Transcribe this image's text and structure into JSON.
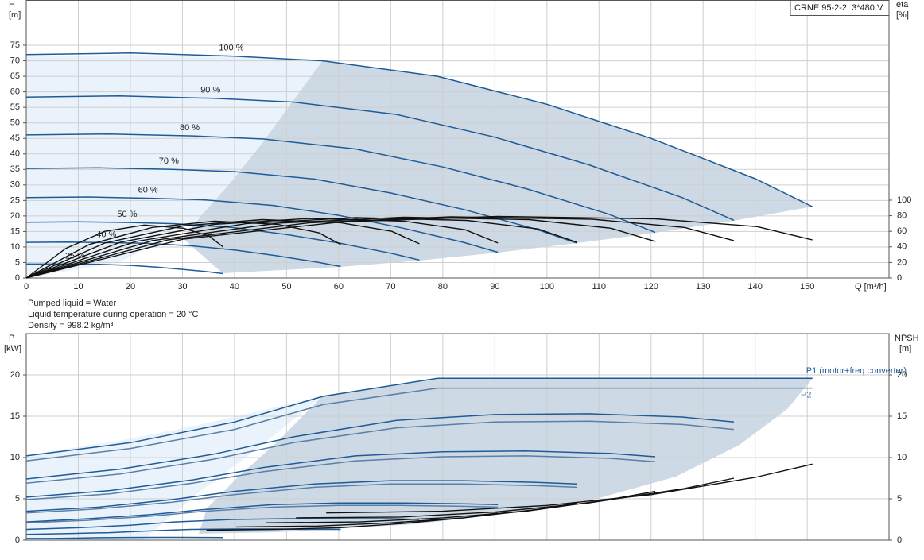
{
  "chart_data": [
    {
      "type": "line",
      "title": "CRNE 95-2-2, 3*480 V",
      "ylabel_lines": [
        "H",
        "[m]"
      ],
      "y2label_lines": [
        "eta",
        "[%]"
      ],
      "xlabel": "Q [m³/h]",
      "notes": [
        "Pumped liquid = Water",
        "Liquid temperature during operation = 20 °C",
        "Density = 998.2 kg/m³"
      ],
      "xlim": [
        0,
        165.7
      ],
      "ylim": [
        0,
        89.6
      ],
      "y2lim": [
        0,
        357
      ],
      "grid": true,
      "xticks": [
        0,
        10,
        20,
        30,
        40,
        50,
        60,
        70,
        80,
        90,
        100,
        110,
        120,
        130,
        140,
        150
      ],
      "yticks": [
        0,
        5,
        10,
        15,
        20,
        25,
        30,
        35,
        40,
        45,
        50,
        55,
        60,
        65,
        70,
        75
      ],
      "y2ticks": [
        0,
        20,
        40,
        60,
        80,
        100
      ],
      "series": [
        {
          "name": "100 %",
          "color": "#1f5b96",
          "x": [
            0,
            20,
            40,
            57,
            79,
            100,
            120,
            140,
            151
          ],
          "values": [
            72,
            72.5,
            71.5,
            70,
            65,
            56,
            45,
            32,
            23
          ]
        },
        {
          "name": "90 %",
          "color": "#1f5b96",
          "x": [
            0,
            18,
            36,
            51.3,
            71.1,
            90,
            108,
            126,
            135.9
          ],
          "values": [
            58.3,
            58.7,
            57.9,
            56.7,
            52.7,
            45.4,
            36.5,
            25.9,
            18.6
          ]
        },
        {
          "name": "80 %",
          "color": "#1f5b96",
          "x": [
            0,
            16,
            32,
            45.6,
            63.2,
            80,
            96,
            112,
            120.8
          ],
          "values": [
            46.1,
            46.4,
            45.8,
            44.8,
            41.6,
            35.8,
            28.8,
            20.5,
            14.7
          ]
        },
        {
          "name": "70 %",
          "color": "#1f5b96",
          "x": [
            0,
            14,
            28,
            39.9,
            55.3,
            70,
            84,
            98,
            105.7
          ],
          "values": [
            35.3,
            35.5,
            35.0,
            34.3,
            31.9,
            27.4,
            22.1,
            15.7,
            11.3
          ]
        },
        {
          "name": "60 %",
          "color": "#1f5b96",
          "x": [
            0,
            12,
            24,
            34.2,
            47.4,
            60,
            72,
            84,
            90.6
          ],
          "values": [
            25.9,
            26.1,
            25.7,
            25.2,
            23.4,
            20.2,
            16.2,
            11.5,
            8.3
          ]
        },
        {
          "name": "50 %",
          "color": "#1f5b96",
          "x": [
            0,
            10,
            20,
            28.5,
            39.5,
            50,
            60,
            70,
            75.5
          ],
          "values": [
            18,
            18.1,
            17.9,
            17.5,
            16.3,
            14,
            11.3,
            8,
            5.8
          ]
        },
        {
          "name": "40 %",
          "color": "#1f5b96",
          "x": [
            0,
            8,
            16,
            22.8,
            31.6,
            40,
            48,
            56,
            60.4
          ],
          "values": [
            11.5,
            11.6,
            11.4,
            11.2,
            10.4,
            9.0,
            7.2,
            5.1,
            3.7
          ]
        },
        {
          "name": "25 %",
          "color": "#1f5b96",
          "x": [
            0,
            5,
            10,
            14.3,
            19.8,
            25,
            30,
            35,
            37.8
          ],
          "values": [
            4.5,
            4.5,
            4.5,
            4.4,
            4.1,
            3.5,
            2.8,
            2.0,
            1.4
          ]
        },
        {
          "axis": "y2",
          "color": "#111111",
          "x": [
            0,
            30.2,
            60.4,
            90.6,
            120.8,
            140.4,
            151
          ],
          "values": [
            0,
            50,
            72,
            79,
            76,
            66,
            49
          ]
        },
        {
          "axis": "y2",
          "color": "#111111",
          "x": [
            0,
            27.2,
            54.4,
            81.5,
            108.7,
            126.4,
            135.9
          ],
          "values": [
            0,
            49,
            71,
            78.5,
            75.5,
            65,
            48
          ]
        },
        {
          "axis": "y2",
          "color": "#111111",
          "x": [
            0,
            24.2,
            48.3,
            72.5,
            96.6,
            112.3,
            120.8
          ],
          "values": [
            0,
            48,
            70.5,
            78,
            75,
            64,
            47
          ]
        },
        {
          "axis": "y2",
          "color": "#111111",
          "x": [
            0,
            21.1,
            42.3,
            63.4,
            84.6,
            98.3,
            105.7
          ],
          "values": [
            0,
            47,
            70,
            77.5,
            74,
            63,
            46
          ]
        },
        {
          "axis": "y2",
          "color": "#111111",
          "x": [
            0,
            18.1,
            36.2,
            54.4,
            72.5,
            84.3,
            90.6
          ],
          "values": [
            0,
            46,
            69,
            76.5,
            73,
            62,
            45
          ]
        },
        {
          "axis": "y2",
          "color": "#111111",
          "x": [
            0,
            15.1,
            30.2,
            45.3,
            60.4,
            70.2,
            75.5
          ],
          "values": [
            0,
            45,
            67,
            75,
            71,
            60,
            44
          ]
        },
        {
          "axis": "y2",
          "color": "#111111",
          "x": [
            0,
            12.1,
            24.2,
            36.2,
            48.3,
            56.2,
            60.4
          ],
          "values": [
            0,
            43,
            65,
            73,
            69,
            58,
            43
          ]
        },
        {
          "axis": "y2",
          "color": "#111111",
          "x": [
            0,
            7.6,
            15.1,
            22.7,
            30.2,
            35.1,
            37.8
          ],
          "values": [
            0,
            38,
            60,
            68,
            64,
            54,
            40
          ]
        }
      ]
    },
    {
      "type": "line",
      "ylabel_lines": [
        "P",
        "[kW]"
      ],
      "y2label_lines": [
        "NPSH",
        "[m]"
      ],
      "xlim": [
        0,
        165.7
      ],
      "ylim": [
        0,
        25
      ],
      "y2lim": [
        0,
        25
      ],
      "grid": true,
      "xticks": [
        0,
        10,
        20,
        30,
        40,
        50,
        60,
        70,
        80,
        90,
        100,
        110,
        120,
        130,
        140,
        150
      ],
      "yticks": [
        0,
        5,
        10,
        15,
        20
      ],
      "y2ticks": [
        0,
        5,
        10,
        15,
        20
      ],
      "series": [
        {
          "name": "P1 (motor+freq.converter)",
          "color": "#1f5b96",
          "x": [
            0,
            20,
            40,
            57,
            79,
            100,
            120,
            140,
            151
          ],
          "values": [
            10.2,
            11.8,
            14.3,
            17.4,
            19.6,
            19.6,
            19.6,
            19.6,
            19.6
          ]
        },
        {
          "color": "#1f5b96",
          "x": [
            0,
            18,
            36,
            51.3,
            71.1,
            90,
            108,
            126,
            135.9
          ],
          "values": [
            7.4,
            8.6,
            10.4,
            12.5,
            14.5,
            15.2,
            15.3,
            14.9,
            14.3
          ]
        },
        {
          "color": "#1f5b96",
          "x": [
            0,
            16,
            32,
            45.6,
            63.2,
            80,
            96,
            112,
            120.8
          ],
          "values": [
            5.2,
            6.0,
            7.3,
            8.8,
            10.2,
            10.7,
            10.8,
            10.5,
            10.1
          ]
        },
        {
          "color": "#1f5b96",
          "x": [
            0,
            14,
            28,
            39.9,
            55.3,
            70,
            84,
            98,
            105.7
          ],
          "values": [
            3.5,
            4.0,
            4.9,
            5.9,
            6.8,
            7.2,
            7.2,
            7.0,
            6.8
          ]
        },
        {
          "color": "#1f5b96",
          "x": [
            0,
            12,
            24,
            34.2,
            47.4,
            60,
            72,
            84,
            90.6
          ],
          "values": [
            2.2,
            2.6,
            3.1,
            3.7,
            4.3,
            4.5,
            4.5,
            4.4,
            4.3
          ]
        },
        {
          "color": "#1f5b96",
          "x": [
            0,
            10,
            20,
            28.5,
            39.5,
            50,
            60,
            70,
            75.5
          ],
          "values": [
            1.3,
            1.5,
            1.8,
            2.2,
            2.5,
            2.6,
            2.6,
            2.6,
            2.5
          ]
        },
        {
          "color": "#1f5b96",
          "x": [
            0,
            8,
            16,
            22.8,
            31.6,
            40,
            48,
            56,
            60.4
          ],
          "values": [
            0.7,
            0.8,
            0.9,
            1.1,
            1.3,
            1.35,
            1.35,
            1.3,
            1.3
          ]
        },
        {
          "color": "#1f5b96",
          "x": [
            0,
            5,
            10,
            14.3,
            19.8,
            25,
            30,
            35,
            37.8
          ],
          "values": [
            0.2,
            0.2,
            0.25,
            0.3,
            0.33,
            0.34,
            0.34,
            0.33,
            0.32
          ]
        },
        {
          "name": "P2",
          "color": "#5a7fa8",
          "x": [
            0,
            20,
            40,
            57,
            79,
            100,
            120,
            140,
            151
          ],
          "values": [
            9.6,
            11.1,
            13.4,
            16.4,
            18.4,
            18.4,
            18.4,
            18.4,
            18.4
          ]
        },
        {
          "color": "#5a7fa8",
          "x": [
            0,
            18,
            36,
            51.3,
            71.1,
            90,
            108,
            126,
            135.9
          ],
          "values": [
            6.9,
            8.0,
            9.8,
            11.8,
            13.6,
            14.3,
            14.4,
            14.0,
            13.4
          ]
        },
        {
          "color": "#5a7fa8",
          "x": [
            0,
            16,
            32,
            45.6,
            63.2,
            80,
            96,
            112,
            120.8
          ],
          "values": [
            4.9,
            5.6,
            6.9,
            8.3,
            9.6,
            10.1,
            10.2,
            9.9,
            9.5
          ]
        },
        {
          "color": "#5a7fa8",
          "x": [
            0,
            14,
            28,
            39.9,
            55.3,
            70,
            84,
            98,
            105.7
          ],
          "values": [
            3.3,
            3.8,
            4.6,
            5.5,
            6.4,
            6.8,
            6.8,
            6.6,
            6.4
          ]
        },
        {
          "color": "#5a7fa8",
          "x": [
            0,
            12,
            24,
            34.2,
            47.4,
            60,
            72,
            84,
            90.6
          ],
          "values": [
            2.1,
            2.4,
            2.9,
            3.5,
            4.0,
            4.2,
            4.2,
            4.1,
            4.0
          ]
        },
        {
          "axis": "y2",
          "color": "#111111",
          "x": [
            57.6,
            80,
            100,
            120,
            140,
            151
          ],
          "values": [
            3.3,
            3.5,
            4.2,
            5.5,
            7.6,
            9.2
          ]
        },
        {
          "axis": "y2",
          "color": "#111111",
          "x": [
            51.8,
            72,
            90,
            108,
            126,
            135.9
          ],
          "values": [
            2.7,
            2.8,
            3.4,
            4.5,
            6.2,
            7.5
          ]
        },
        {
          "axis": "y2",
          "color": "#111111",
          "x": [
            46,
            64,
            80,
            96,
            112,
            120.8
          ],
          "values": [
            2.1,
            2.2,
            2.7,
            3.5,
            4.9,
            5.9
          ]
        },
        {
          "axis": "y2",
          "color": "#111111",
          "x": [
            40.3,
            56,
            70,
            84,
            98,
            105.7
          ],
          "values": [
            1.6,
            1.7,
            2.1,
            2.7,
            3.7,
            4.5
          ]
        },
        {
          "axis": "y2",
          "color": "#111111",
          "x": [
            34.6,
            48,
            60,
            72,
            84,
            90.6
          ],
          "values": [
            1.2,
            1.3,
            1.5,
            2.0,
            2.7,
            3.3
          ]
        }
      ]
    }
  ]
}
